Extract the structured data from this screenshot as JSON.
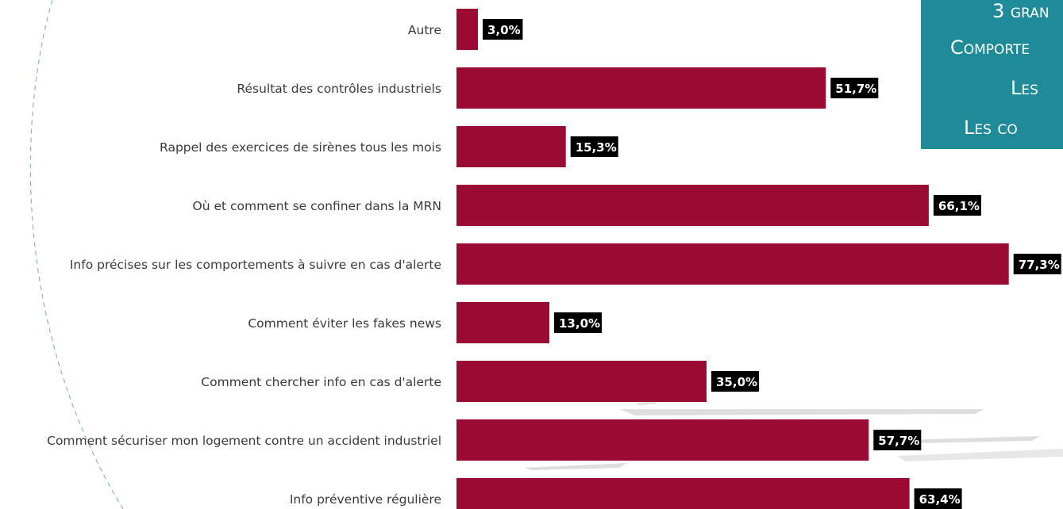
{
  "colors": {
    "bar": "#9b0a33",
    "label_box": "#000000",
    "callout_bg": "#1f8a98",
    "decor_line": "#8fb3c4"
  },
  "callout": {
    "lines": [
      "3 gran",
      "Comporte",
      "Les",
      "Les co"
    ]
  },
  "chart_data": {
    "type": "bar",
    "orientation": "horizontal",
    "categories": [
      "Autre",
      "Résultat des contrôles industriels",
      "Rappel des exercices de sirènes tous les mois",
      "Où et comment se confiner dans la MRN",
      "Info précises sur les comportements à suivre en cas d'alerte",
      "Comment éviter les fakes news",
      "Comment chercher info en cas d'alerte",
      "Comment sécuriser mon logement contre un accident industriel",
      "Info préventive régulière"
    ],
    "values": [
      3.0,
      51.7,
      15.3,
      66.1,
      77.3,
      13.0,
      35.0,
      57.7,
      63.4
    ],
    "value_labels": [
      "3,0%",
      "51,7%",
      "15,3%",
      "66,1%",
      "77,3%",
      "13,0%",
      "35,0%",
      "57,7%",
      "63,4%"
    ],
    "unit": "%",
    "xlim": [
      0,
      100
    ],
    "grid": false,
    "legend": "none"
  }
}
